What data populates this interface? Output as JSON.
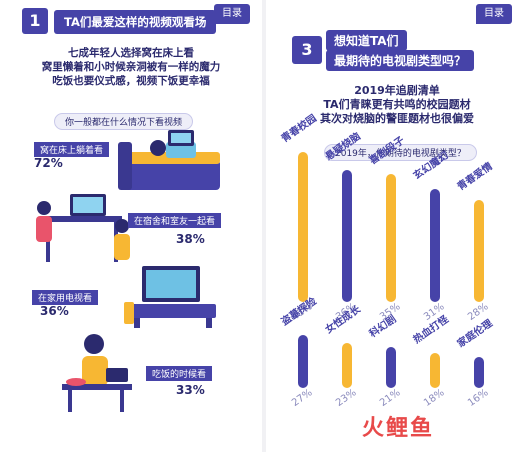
{
  "left": {
    "section_number": "1",
    "heading": "TA们最爱这样的视频观看场",
    "menu_label": "目录",
    "intro_lines": [
      "七成年轻人选择窝在床上看",
      "窝里懒着和小时候亲洞被有一样的魔力",
      "吃饭也要仪式感，视频下饭更幸福"
    ],
    "question": "你一般都在什么情况下看视频",
    "items": [
      {
        "label": "窝在床上躺着看",
        "percent": "72%"
      },
      {
        "label": "在宿舍和室友一起看",
        "percent": "38%"
      },
      {
        "label": "在家用电视看",
        "percent": "36%"
      },
      {
        "label": "吃饭的时候看",
        "percent": "33%"
      }
    ]
  },
  "right": {
    "section_number": "3",
    "heading_line1": "想知道TA们",
    "heading_line2": "最期待的电视剧类型吗？",
    "menu_label": "目录",
    "intro_lines": [
      "2019年追剧清单",
      "TA们青睐更有共鸣的校园题材",
      "其次对烧脑的警匪题材也很偏爱"
    ],
    "question": "2019年，你期待的电视剧类型？",
    "chart_data": {
      "type": "bar",
      "title": "2019年，你期待的电视剧类型？",
      "categories": [
        "青春校园",
        "悬疑烧脑",
        "喜剧段子",
        "玄幻魔幻",
        "青春爱情",
        "盗墓探险",
        "女性成长",
        "科幻剧",
        "热血打怪",
        "家庭伦理"
      ],
      "values": [
        41,
        36,
        35,
        31,
        28,
        27,
        23,
        21,
        18,
        16
      ],
      "value_labels": [
        "41%",
        "36%",
        "35%",
        "31%",
        "28%",
        "27%",
        "23%",
        "21%",
        "18%",
        "16%"
      ],
      "colors": [
        "#f7b733",
        "#4643a8",
        "#f7b733",
        "#4643a8",
        "#f7b733",
        "#4643a8",
        "#f7b733",
        "#4643a8",
        "#f7b733",
        "#4643a8"
      ]
    },
    "logo_text": "火鲤鱼"
  }
}
